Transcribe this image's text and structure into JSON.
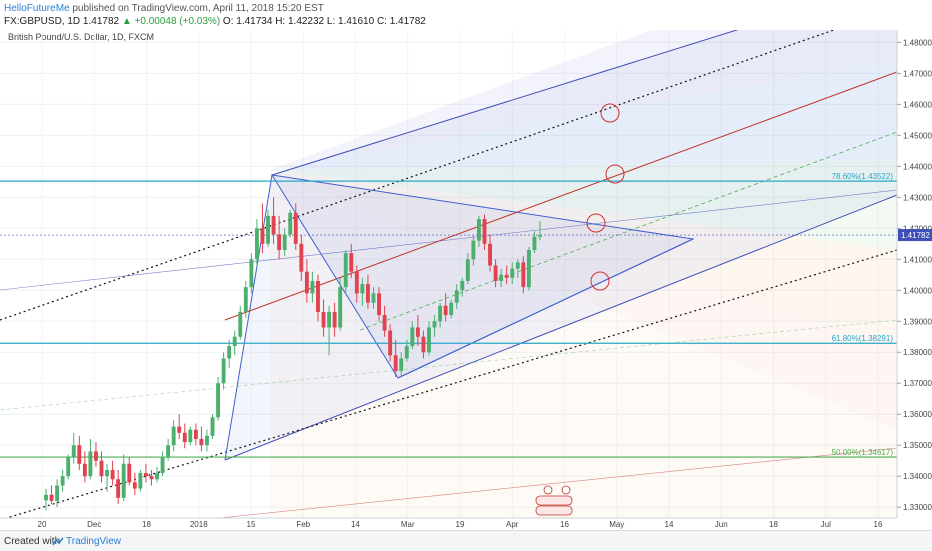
{
  "header": {
    "user": "HelloFutureMe",
    "published": " published on TradingView.com, April 11, 2018 15:20 EST",
    "symbol": "FX:GBPUSD, 1D",
    "last": "1.41782",
    "change": "▲ +0.00048 (+0.03%)",
    "ohlc": " O: 1.41734  H: 1.42232  L: 1.41610  C: 1.41782"
  },
  "chart_label": "British Pound/U.S. Dollar, 1D, FXCM",
  "footer": {
    "created_with": "Created with",
    "brand": "TradingView"
  },
  "colors": {
    "up": "#4caf6e",
    "down": "#e0434f",
    "fib_blue": "#26a8c8",
    "fib_green": "#4caf50",
    "pitchfork": "#3f4fb8",
    "median": "#c0392b",
    "price_label": "#3f4fb8"
  },
  "chart_data": {
    "type": "candlestick",
    "ylim": [
      1.3265,
      1.484
    ],
    "yticks": [
      "1.48000",
      "1.47000",
      "1.46000",
      "1.45000",
      "1.44000",
      "1.43000",
      "1.42000",
      "1.41000",
      "1.40000",
      "1.39000",
      "1.38000",
      "1.37000",
      "1.36000",
      "1.35000",
      "1.34000",
      "1.33000"
    ],
    "xticks": [
      "20",
      "Dec",
      "18",
      "2018",
      "15",
      "Feb",
      "14",
      "Mar",
      "19",
      "Apr",
      "16",
      "May",
      "14",
      "Jun",
      "18",
      "Jul",
      "16"
    ],
    "last_price": "1.41782",
    "fib_levels": [
      {
        "label": "78.60%(1.43522)",
        "value": 1.43522,
        "color": "#26a8c8"
      },
      {
        "label": "61.80%(1.38291)",
        "value": 1.38291,
        "color": "#26a8c8"
      },
      {
        "label": "50.00%(1.34617)",
        "value": 1.34617,
        "color": "#4caf50"
      }
    ],
    "candles": [
      {
        "o": 1.3322,
        "h": 1.336,
        "l": 1.329,
        "c": 1.334
      },
      {
        "o": 1.334,
        "h": 1.337,
        "l": 1.331,
        "c": 1.332
      },
      {
        "o": 1.332,
        "h": 1.339,
        "l": 1.33,
        "c": 1.337
      },
      {
        "o": 1.337,
        "h": 1.342,
        "l": 1.335,
        "c": 1.34
      },
      {
        "o": 1.34,
        "h": 1.347,
        "l": 1.339,
        "c": 1.346
      },
      {
        "o": 1.346,
        "h": 1.354,
        "l": 1.344,
        "c": 1.35
      },
      {
        "o": 1.35,
        "h": 1.353,
        "l": 1.342,
        "c": 1.344
      },
      {
        "o": 1.344,
        "h": 1.348,
        "l": 1.338,
        "c": 1.34
      },
      {
        "o": 1.34,
        "h": 1.352,
        "l": 1.339,
        "c": 1.348
      },
      {
        "o": 1.348,
        "h": 1.351,
        "l": 1.343,
        "c": 1.345
      },
      {
        "o": 1.345,
        "h": 1.348,
        "l": 1.338,
        "c": 1.34
      },
      {
        "o": 1.34,
        "h": 1.344,
        "l": 1.335,
        "c": 1.342
      },
      {
        "o": 1.342,
        "h": 1.345,
        "l": 1.337,
        "c": 1.339
      },
      {
        "o": 1.339,
        "h": 1.342,
        "l": 1.331,
        "c": 1.333
      },
      {
        "o": 1.333,
        "h": 1.347,
        "l": 1.332,
        "c": 1.344
      },
      {
        "o": 1.344,
        "h": 1.346,
        "l": 1.337,
        "c": 1.338
      },
      {
        "o": 1.338,
        "h": 1.341,
        "l": 1.334,
        "c": 1.336
      },
      {
        "o": 1.336,
        "h": 1.342,
        "l": 1.335,
        "c": 1.341
      },
      {
        "o": 1.341,
        "h": 1.344,
        "l": 1.338,
        "c": 1.34
      },
      {
        "o": 1.34,
        "h": 1.342,
        "l": 1.337,
        "c": 1.339
      },
      {
        "o": 1.339,
        "h": 1.343,
        "l": 1.338,
        "c": 1.341
      },
      {
        "o": 1.341,
        "h": 1.348,
        "l": 1.34,
        "c": 1.346
      },
      {
        "o": 1.346,
        "h": 1.352,
        "l": 1.345,
        "c": 1.35
      },
      {
        "o": 1.35,
        "h": 1.358,
        "l": 1.348,
        "c": 1.356
      },
      {
        "o": 1.356,
        "h": 1.36,
        "l": 1.352,
        "c": 1.354
      },
      {
        "o": 1.354,
        "h": 1.357,
        "l": 1.349,
        "c": 1.351
      },
      {
        "o": 1.351,
        "h": 1.356,
        "l": 1.35,
        "c": 1.355
      },
      {
        "o": 1.355,
        "h": 1.357,
        "l": 1.35,
        "c": 1.352
      },
      {
        "o": 1.352,
        "h": 1.356,
        "l": 1.348,
        "c": 1.35
      },
      {
        "o": 1.35,
        "h": 1.355,
        "l": 1.348,
        "c": 1.353
      },
      {
        "o": 1.353,
        "h": 1.36,
        "l": 1.352,
        "c": 1.359
      },
      {
        "o": 1.359,
        "h": 1.372,
        "l": 1.358,
        "c": 1.37
      },
      {
        "o": 1.37,
        "h": 1.38,
        "l": 1.368,
        "c": 1.378
      },
      {
        "o": 1.378,
        "h": 1.384,
        "l": 1.375,
        "c": 1.382
      },
      {
        "o": 1.382,
        "h": 1.387,
        "l": 1.379,
        "c": 1.385
      },
      {
        "o": 1.385,
        "h": 1.395,
        "l": 1.384,
        "c": 1.393
      },
      {
        "o": 1.393,
        "h": 1.403,
        "l": 1.391,
        "c": 1.401
      },
      {
        "o": 1.401,
        "h": 1.412,
        "l": 1.399,
        "c": 1.41
      },
      {
        "o": 1.41,
        "h": 1.423,
        "l": 1.408,
        "c": 1.42
      },
      {
        "o": 1.42,
        "h": 1.428,
        "l": 1.412,
        "c": 1.415
      },
      {
        "o": 1.415,
        "h": 1.426,
        "l": 1.414,
        "c": 1.424
      },
      {
        "o": 1.424,
        "h": 1.43,
        "l": 1.415,
        "c": 1.418
      },
      {
        "o": 1.418,
        "h": 1.424,
        "l": 1.41,
        "c": 1.413
      },
      {
        "o": 1.413,
        "h": 1.42,
        "l": 1.411,
        "c": 1.418
      },
      {
        "o": 1.418,
        "h": 1.426,
        "l": 1.417,
        "c": 1.425
      },
      {
        "o": 1.425,
        "h": 1.428,
        "l": 1.413,
        "c": 1.415
      },
      {
        "o": 1.415,
        "h": 1.418,
        "l": 1.403,
        "c": 1.406
      },
      {
        "o": 1.406,
        "h": 1.41,
        "l": 1.396,
        "c": 1.399
      },
      {
        "o": 1.399,
        "h": 1.406,
        "l": 1.396,
        "c": 1.403
      },
      {
        "o": 1.403,
        "h": 1.405,
        "l": 1.39,
        "c": 1.393
      },
      {
        "o": 1.393,
        "h": 1.397,
        "l": 1.385,
        "c": 1.388
      },
      {
        "o": 1.388,
        "h": 1.395,
        "l": 1.379,
        "c": 1.393
      },
      {
        "o": 1.393,
        "h": 1.396,
        "l": 1.385,
        "c": 1.388
      },
      {
        "o": 1.388,
        "h": 1.404,
        "l": 1.387,
        "c": 1.401
      },
      {
        "o": 1.401,
        "h": 1.413,
        "l": 1.399,
        "c": 1.412
      },
      {
        "o": 1.412,
        "h": 1.415,
        "l": 1.404,
        "c": 1.406
      },
      {
        "o": 1.406,
        "h": 1.408,
        "l": 1.396,
        "c": 1.399
      },
      {
        "o": 1.399,
        "h": 1.404,
        "l": 1.395,
        "c": 1.402
      },
      {
        "o": 1.402,
        "h": 1.405,
        "l": 1.394,
        "c": 1.396
      },
      {
        "o": 1.396,
        "h": 1.401,
        "l": 1.394,
        "c": 1.399
      },
      {
        "o": 1.399,
        "h": 1.401,
        "l": 1.39,
        "c": 1.392
      },
      {
        "o": 1.392,
        "h": 1.395,
        "l": 1.385,
        "c": 1.387
      },
      {
        "o": 1.387,
        "h": 1.389,
        "l": 1.377,
        "c": 1.379
      },
      {
        "o": 1.379,
        "h": 1.384,
        "l": 1.372,
        "c": 1.374
      },
      {
        "o": 1.374,
        "h": 1.38,
        "l": 1.372,
        "c": 1.378
      },
      {
        "o": 1.378,
        "h": 1.384,
        "l": 1.377,
        "c": 1.382
      },
      {
        "o": 1.382,
        "h": 1.39,
        "l": 1.381,
        "c": 1.388
      },
      {
        "o": 1.388,
        "h": 1.392,
        "l": 1.382,
        "c": 1.385
      },
      {
        "o": 1.385,
        "h": 1.387,
        "l": 1.378,
        "c": 1.38
      },
      {
        "o": 1.38,
        "h": 1.39,
        "l": 1.379,
        "c": 1.388
      },
      {
        "o": 1.388,
        "h": 1.392,
        "l": 1.385,
        "c": 1.39
      },
      {
        "o": 1.39,
        "h": 1.396,
        "l": 1.388,
        "c": 1.395
      },
      {
        "o": 1.395,
        "h": 1.399,
        "l": 1.39,
        "c": 1.392
      },
      {
        "o": 1.392,
        "h": 1.397,
        "l": 1.391,
        "c": 1.396
      },
      {
        "o": 1.396,
        "h": 1.402,
        "l": 1.394,
        "c": 1.4
      },
      {
        "o": 1.4,
        "h": 1.404,
        "l": 1.398,
        "c": 1.403
      },
      {
        "o": 1.403,
        "h": 1.412,
        "l": 1.402,
        "c": 1.41
      },
      {
        "o": 1.41,
        "h": 1.418,
        "l": 1.408,
        "c": 1.416
      },
      {
        "o": 1.416,
        "h": 1.424,
        "l": 1.414,
        "c": 1.423
      },
      {
        "o": 1.423,
        "h": 1.4245,
        "l": 1.413,
        "c": 1.415
      },
      {
        "o": 1.415,
        "h": 1.418,
        "l": 1.406,
        "c": 1.408
      },
      {
        "o": 1.408,
        "h": 1.41,
        "l": 1.401,
        "c": 1.403
      },
      {
        "o": 1.403,
        "h": 1.407,
        "l": 1.401,
        "c": 1.405
      },
      {
        "o": 1.405,
        "h": 1.408,
        "l": 1.402,
        "c": 1.404
      },
      {
        "o": 1.404,
        "h": 1.409,
        "l": 1.402,
        "c": 1.407
      },
      {
        "o": 1.407,
        "h": 1.41,
        "l": 1.404,
        "c": 1.409
      },
      {
        "o": 1.409,
        "h": 1.411,
        "l": 1.399,
        "c": 1.401
      },
      {
        "o": 1.401,
        "h": 1.414,
        "l": 1.4,
        "c": 1.413
      },
      {
        "o": 1.413,
        "h": 1.419,
        "l": 1.412,
        "c": 1.4173
      },
      {
        "o": 1.4173,
        "h": 1.4223,
        "l": 1.4161,
        "c": 1.4178
      }
    ]
  }
}
